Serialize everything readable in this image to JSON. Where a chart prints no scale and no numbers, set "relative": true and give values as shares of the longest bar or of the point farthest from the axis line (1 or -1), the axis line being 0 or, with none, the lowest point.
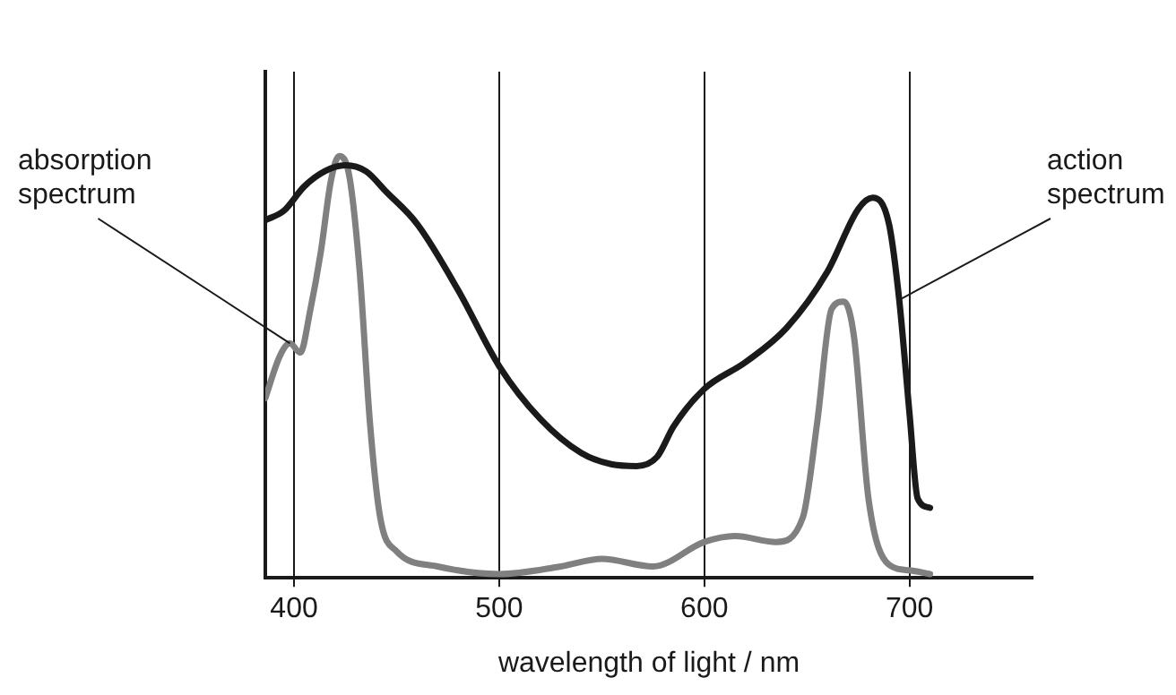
{
  "chart_data": {
    "type": "line",
    "relative": true,
    "xlabel": "wavelength of light / nm",
    "xlim": [
      386,
      760
    ],
    "xticks": [
      400,
      500,
      600,
      700
    ],
    "grid": "x",
    "legend": false,
    "marker": "none",
    "line_style": "solid",
    "annotations": [
      {
        "text": "absorption spectrum",
        "x": 398,
        "y": 0.556
      },
      {
        "text": "action spectrum",
        "x": 695,
        "y": 0.659
      }
    ],
    "series": [
      {
        "color": "#1a1a1a",
        "x": [
          386,
          395,
          405,
          415,
          425,
          435,
          445,
          460,
          480,
          500,
          520,
          540,
          555,
          567,
          577,
          585,
          600,
          620,
          640,
          660,
          675,
          682,
          690,
          695,
          700,
          704,
          710
        ],
        "values": [
          0.848,
          0.87,
          0.928,
          0.964,
          0.978,
          0.964,
          0.915,
          0.839,
          0.682,
          0.502,
          0.377,
          0.296,
          0.269,
          0.265,
          0.287,
          0.359,
          0.448,
          0.511,
          0.592,
          0.726,
          0.874,
          0.901,
          0.839,
          0.659,
          0.39,
          0.188,
          0.166
        ]
      },
      {
        "color": "#808080",
        "x": [
          386,
          393,
          398,
          403,
          408,
          413,
          418,
          422,
          427,
          432,
          437,
          442,
          450,
          470,
          500,
          530,
          550,
          575,
          600,
          615,
          635,
          648,
          655,
          662,
          668,
          673,
          680,
          690,
          700,
          710
        ],
        "values": [
          0.426,
          0.525,
          0.556,
          0.534,
          0.637,
          0.771,
          0.942,
          1,
          0.951,
          0.726,
          0.368,
          0.143,
          0.063,
          0.027,
          0.009,
          0.027,
          0.045,
          0.027,
          0.085,
          0.099,
          0.085,
          0.143,
          0.368,
          0.637,
          0.655,
          0.57,
          0.188,
          0.031,
          0.018,
          0.009
        ]
      }
    ]
  }
}
